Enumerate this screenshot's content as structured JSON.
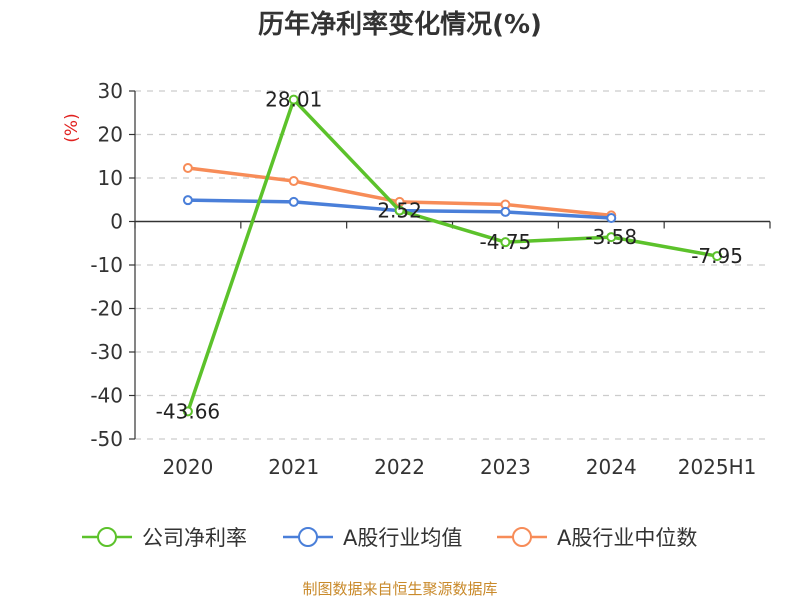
{
  "chart_data": {
    "type": "line",
    "title": "历年净利率变化情况(%)",
    "ylabel": "(%)",
    "categories": [
      "2020",
      "2021",
      "2022",
      "2023",
      "2024",
      "2025H1"
    ],
    "yticks": [
      "30",
      "20",
      "10",
      "0",
      "-10",
      "-20",
      "-30",
      "-40",
      "-50"
    ],
    "ylim": [
      -50,
      30
    ],
    "grid": "horizontal dashed",
    "legend_position": "bottom",
    "series": [
      {
        "name": "公司净利率",
        "color": "#5cc22b",
        "values": [
          -43.66,
          28.01,
          2.52,
          -4.75,
          -3.58,
          -7.95
        ],
        "labels": [
          "-43.66",
          "28.01",
          "2.52",
          "-4.75",
          "-3.58",
          "-7.95"
        ]
      },
      {
        "name": "A股行业均值",
        "color": "#4a7fd9",
        "values": [
          4.9,
          4.5,
          2.5,
          2.2,
          0.8,
          null
        ]
      },
      {
        "name": "A股行业中位数",
        "color": "#f78c58",
        "values": [
          12.3,
          9.3,
          4.5,
          3.9,
          1.4,
          null
        ]
      }
    ]
  },
  "source": "制图数据来自恒生聚源数据库"
}
